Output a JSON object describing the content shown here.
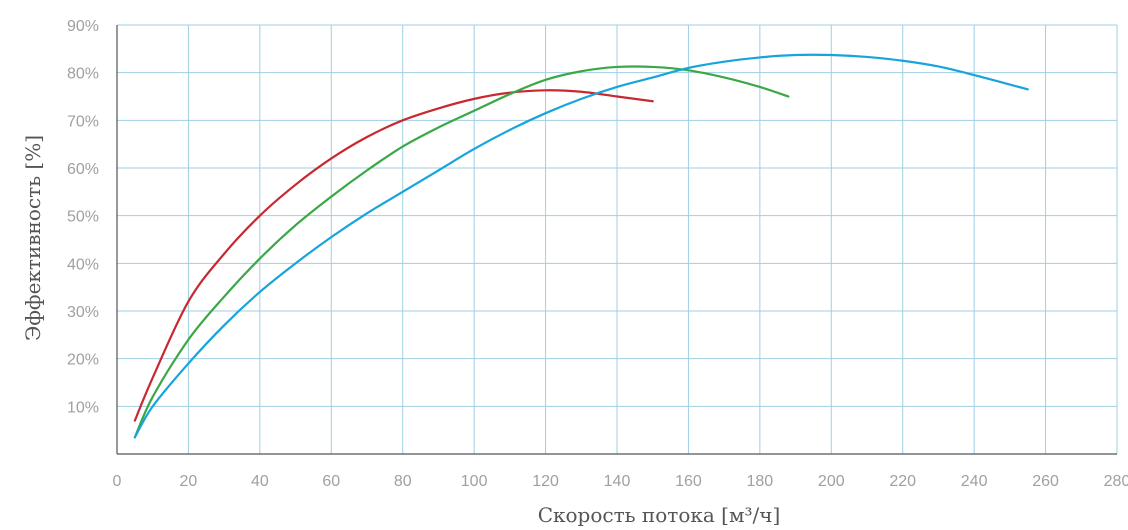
{
  "chart_data": {
    "type": "line",
    "xlabel": "Скорость потока [м³/ч]",
    "ylabel": "Эффективность [%]",
    "xlim": [
      0,
      280
    ],
    "ylim": [
      0,
      90
    ],
    "x_ticks": [
      "0",
      "20",
      "40",
      "60",
      "80",
      "100",
      "120",
      "140",
      "160",
      "180",
      "200",
      "220",
      "240",
      "260",
      "280"
    ],
    "y_ticks": [
      "10%",
      "20%",
      "30%",
      "40%",
      "50%",
      "60%",
      "70%",
      "80%",
      "90%"
    ],
    "grid": true,
    "series": [
      {
        "color": "#c8282f",
        "points": [
          [
            5,
            7
          ],
          [
            10,
            16
          ],
          [
            20,
            32
          ],
          [
            30,
            42
          ],
          [
            40,
            50
          ],
          [
            50,
            56.5
          ],
          [
            60,
            62
          ],
          [
            70,
            66.5
          ],
          [
            80,
            70
          ],
          [
            90,
            72.5
          ],
          [
            100,
            74.5
          ],
          [
            110,
            75.8
          ],
          [
            120,
            76.3
          ],
          [
            130,
            76
          ],
          [
            140,
            75
          ],
          [
            150,
            74
          ]
        ]
      },
      {
        "color": "#3aa845",
        "points": [
          [
            5,
            3.5
          ],
          [
            10,
            12
          ],
          [
            20,
            24
          ],
          [
            30,
            33
          ],
          [
            40,
            41
          ],
          [
            50,
            48
          ],
          [
            60,
            54
          ],
          [
            70,
            59.5
          ],
          [
            80,
            64.5
          ],
          [
            90,
            68.5
          ],
          [
            100,
            72
          ],
          [
            110,
            75.5
          ],
          [
            120,
            78.5
          ],
          [
            130,
            80.3
          ],
          [
            140,
            81.2
          ],
          [
            150,
            81.2
          ],
          [
            160,
            80.5
          ],
          [
            170,
            79
          ],
          [
            180,
            77
          ],
          [
            188,
            75
          ]
        ]
      },
      {
        "color": "#17a4dc",
        "points": [
          [
            5,
            3.5
          ],
          [
            10,
            10
          ],
          [
            20,
            19
          ],
          [
            30,
            27
          ],
          [
            40,
            34
          ],
          [
            50,
            40
          ],
          [
            60,
            45.5
          ],
          [
            70,
            50.5
          ],
          [
            80,
            55
          ],
          [
            90,
            59.5
          ],
          [
            100,
            64
          ],
          [
            110,
            68
          ],
          [
            120,
            71.5
          ],
          [
            130,
            74.5
          ],
          [
            140,
            77
          ],
          [
            150,
            79
          ],
          [
            160,
            81
          ],
          [
            170,
            82.3
          ],
          [
            180,
            83.2
          ],
          [
            190,
            83.7
          ],
          [
            200,
            83.7
          ],
          [
            210,
            83.3
          ],
          [
            220,
            82.5
          ],
          [
            230,
            81.3
          ],
          [
            240,
            79.5
          ],
          [
            255,
            76.5
          ]
        ]
      }
    ]
  }
}
